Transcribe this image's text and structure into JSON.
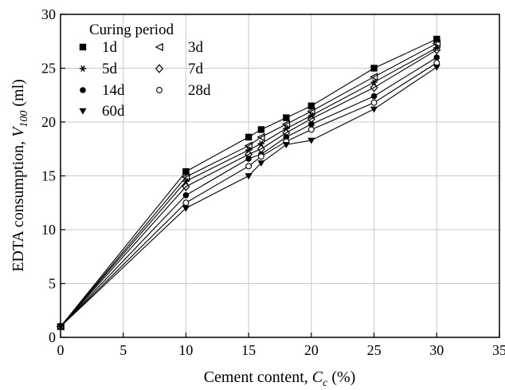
{
  "chart_data": {
    "type": "line",
    "xlabel": {
      "main": "Cement content, ",
      "var": "C",
      "sub": "c",
      "tail": " (%)"
    },
    "ylabel": {
      "main": "EDTA consumption, ",
      "var": "V",
      "sub": "100",
      "tail": " (ml)"
    },
    "xlim": [
      0,
      35
    ],
    "ylim": [
      0,
      30
    ],
    "x_ticks": [
      0,
      5,
      10,
      15,
      20,
      25,
      30,
      35
    ],
    "y_ticks": [
      0,
      5,
      10,
      15,
      20,
      25,
      30
    ],
    "grid": true,
    "legend_title": "Curing period",
    "legend_position": "top-left",
    "x": [
      0,
      10,
      15,
      16,
      18,
      20,
      25,
      30
    ],
    "series": [
      {
        "name": "1d",
        "marker": "square",
        "values": [
          1.0,
          15.4,
          18.6,
          19.3,
          20.4,
          21.5,
          25.0,
          27.7
        ]
      },
      {
        "name": "3d",
        "marker": "triangle-left",
        "values": [
          1.0,
          14.9,
          17.8,
          18.6,
          19.8,
          21.0,
          24.2,
          27.3
        ]
      },
      {
        "name": "5d",
        "marker": "asterisk",
        "values": [
          1.0,
          14.5,
          17.4,
          18.0,
          19.4,
          20.6,
          23.7,
          26.9
        ]
      },
      {
        "name": "7d",
        "marker": "diamond-open",
        "values": [
          1.0,
          14.0,
          17.0,
          17.5,
          19.0,
          20.3,
          23.2,
          26.7
        ]
      },
      {
        "name": "14d",
        "marker": "circle",
        "values": [
          1.0,
          13.2,
          16.6,
          17.0,
          18.6,
          19.8,
          22.4,
          26.0
        ]
      },
      {
        "name": "28d",
        "marker": "circle-open",
        "values": [
          1.0,
          12.5,
          15.9,
          16.8,
          18.2,
          19.3,
          21.8,
          25.5
        ]
      },
      {
        "name": "60d",
        "marker": "triangle-down",
        "values": [
          1.0,
          12.0,
          15.0,
          16.2,
          17.9,
          18.3,
          21.2,
          25.1
        ]
      }
    ]
  }
}
